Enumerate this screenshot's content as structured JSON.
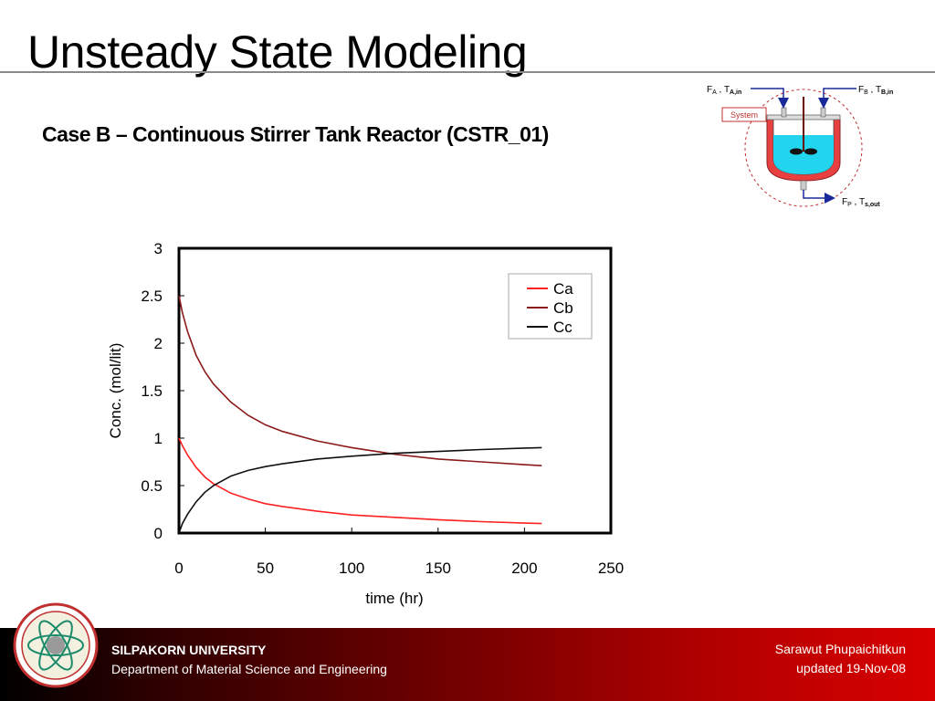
{
  "slide": {
    "title": "Unsteady State Modeling",
    "subtitle": "Case B – Continuous Stirrer Tank Reactor (CSTR_01)"
  },
  "diagram": {
    "system_label": "System",
    "inlet_a": {
      "flow": "F",
      "flow_sub": "A",
      "sep": " , ",
      "temp": "T",
      "temp_sub": "A,in"
    },
    "inlet_b": {
      "flow": "F",
      "flow_sub": "B",
      "sep": " , ",
      "temp": "T",
      "temp_sub": "B,in"
    },
    "outlet": {
      "flow": "F",
      "flow_sub": "P",
      "sep": " , ",
      "temp": "T",
      "temp_sub": "s,out"
    }
  },
  "chart_data": {
    "type": "line",
    "xlabel": "time (hr)",
    "ylabel": "Conc. (mol/lit)",
    "xlim": [
      0,
      250
    ],
    "ylim": [
      0,
      3
    ],
    "xticks": [
      "0",
      "50",
      "100",
      "150",
      "200",
      "250"
    ],
    "yticks": [
      "0",
      "0.5",
      "1",
      "1.5",
      "2",
      "2.5",
      "3"
    ],
    "grid": false,
    "legend_position": "top-right",
    "series": [
      {
        "name": "Ca",
        "color": "#ff2020",
        "x": [
          0,
          2,
          5,
          10,
          15,
          20,
          30,
          40,
          50,
          60,
          80,
          100,
          125,
          150,
          175,
          200,
          210
        ],
        "y": [
          1.0,
          0.92,
          0.82,
          0.69,
          0.59,
          0.52,
          0.42,
          0.36,
          0.31,
          0.28,
          0.23,
          0.19,
          0.165,
          0.14,
          0.12,
          0.105,
          0.1
        ]
      },
      {
        "name": "Cb",
        "color": "#8b1a1a",
        "x": [
          0,
          2,
          5,
          10,
          15,
          20,
          30,
          40,
          50,
          60,
          80,
          100,
          125,
          150,
          175,
          200,
          210
        ],
        "y": [
          2.5,
          2.32,
          2.12,
          1.87,
          1.7,
          1.57,
          1.38,
          1.24,
          1.14,
          1.07,
          0.97,
          0.9,
          0.83,
          0.78,
          0.75,
          0.72,
          0.71
        ]
      },
      {
        "name": "Cc",
        "color": "#101010",
        "x": [
          0,
          2,
          5,
          10,
          15,
          20,
          30,
          40,
          50,
          60,
          80,
          100,
          125,
          150,
          175,
          200,
          210
        ],
        "y": [
          0.0,
          0.1,
          0.2,
          0.33,
          0.43,
          0.5,
          0.6,
          0.66,
          0.7,
          0.73,
          0.78,
          0.81,
          0.84,
          0.86,
          0.88,
          0.895,
          0.9
        ]
      }
    ]
  },
  "footer": {
    "university": "SILPAKORN UNIVERSITY",
    "department": "Department of Material Science and Engineering",
    "author": "Sarawut Phupaichitkun",
    "updated": "updated  19-Nov-08"
  }
}
